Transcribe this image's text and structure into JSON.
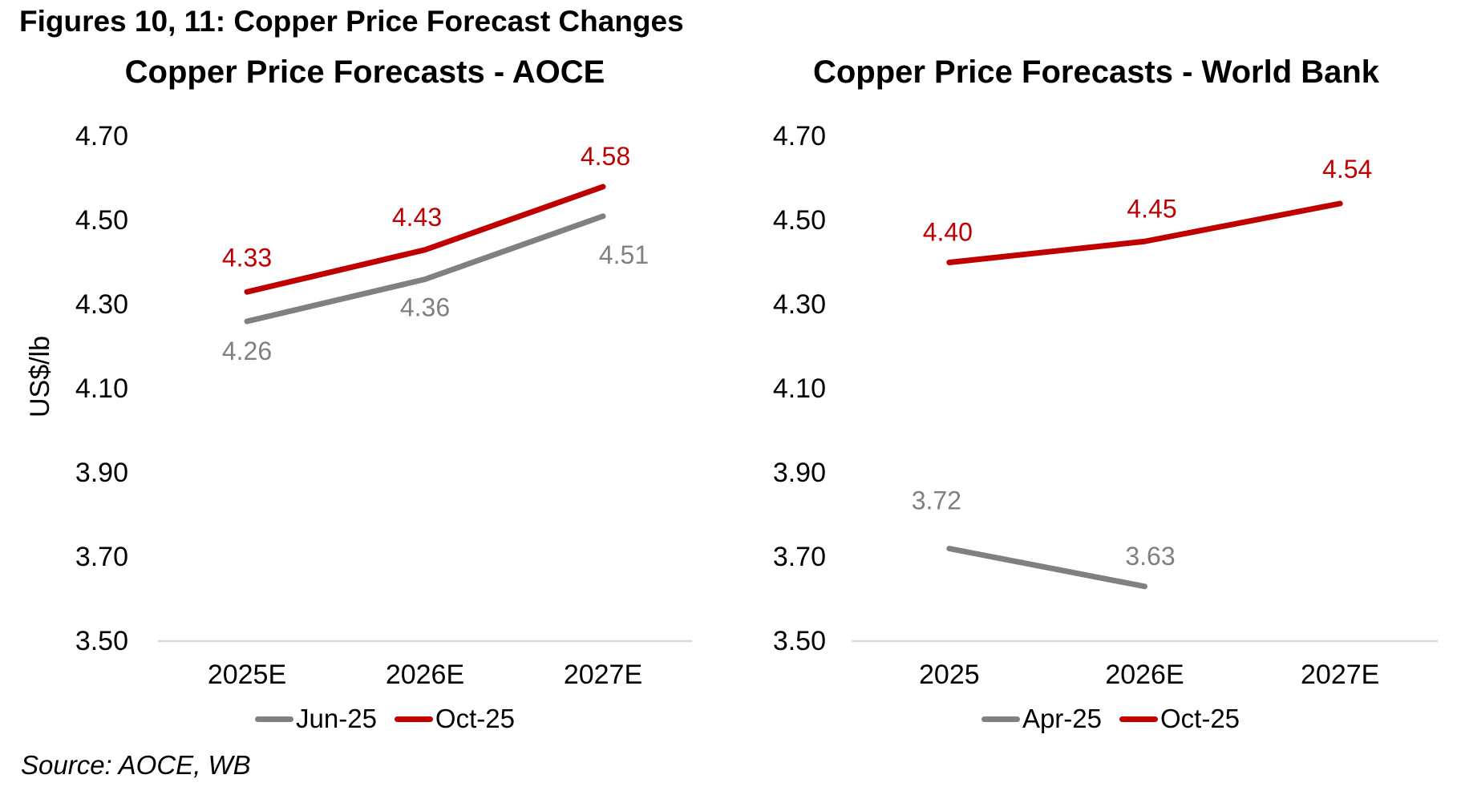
{
  "page_title": "Figures 10, 11: Copper Price Forecast Changes",
  "source": "Source: AOCE, WB",
  "colors": {
    "series_red": "#C00000",
    "series_gray": "#808080",
    "axis_text": "#000000",
    "baseline_gridline": "#D9D9D9",
    "background": "#FFFFFF"
  },
  "chart_data": [
    {
      "type": "line",
      "title": "Copper Price Forecasts - AOCE",
      "ylabel": "US$/lb",
      "xlabel": "",
      "categories": [
        "2025E",
        "2026E",
        "2027E"
      ],
      "series": [
        {
          "name": "Jun-25",
          "color": "#808080",
          "values": [
            4.26,
            4.36,
            4.51
          ]
        },
        {
          "name": "Oct-25",
          "color": "#C00000",
          "values": [
            4.33,
            4.43,
            4.58
          ]
        }
      ],
      "ylim": [
        3.5,
        4.7
      ],
      "yticks": [
        "4.70",
        "4.50",
        "4.30",
        "4.10",
        "3.90",
        "3.70",
        "3.50"
      ],
      "grid": "baseline-only",
      "data_labels": true,
      "legend_position": "bottom"
    },
    {
      "type": "line",
      "title": "Copper Price Forecasts - World Bank",
      "ylabel": "",
      "xlabel": "",
      "categories": [
        "2025",
        "2026E",
        "2027E"
      ],
      "series": [
        {
          "name": "Apr-25",
          "color": "#808080",
          "values": [
            3.72,
            3.63,
            null
          ]
        },
        {
          "name": "Oct-25",
          "color": "#C00000",
          "values": [
            4.4,
            4.45,
            4.54
          ]
        }
      ],
      "ylim": [
        3.5,
        4.7
      ],
      "yticks": [
        "4.70",
        "4.50",
        "4.30",
        "4.10",
        "3.90",
        "3.70",
        "3.50"
      ],
      "grid": "baseline-only",
      "data_labels": true,
      "legend_position": "bottom"
    }
  ]
}
